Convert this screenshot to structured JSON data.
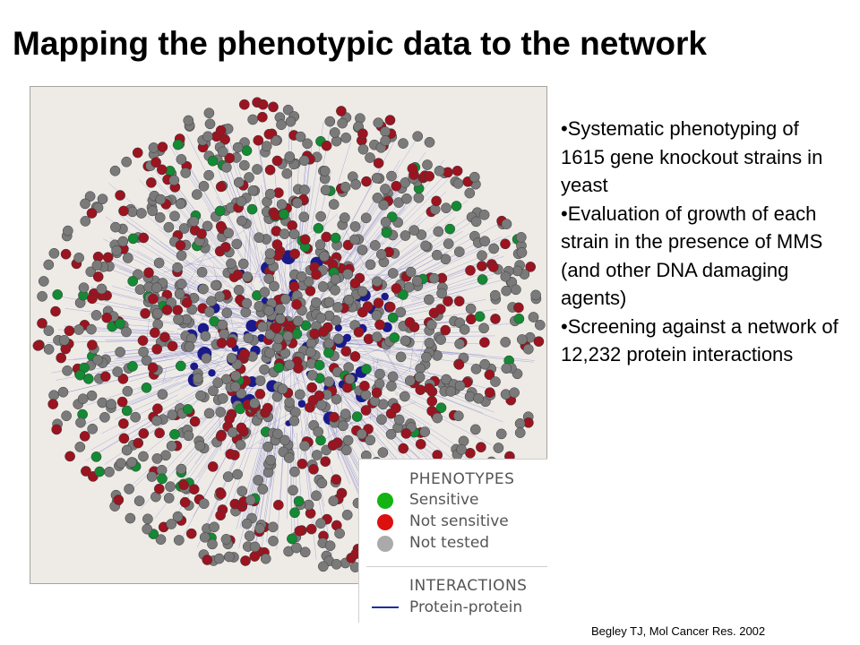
{
  "slide": {
    "title": "Mapping the phenotypic data to the network"
  },
  "bullets": [
    "Systematic phenotyping of 1615 gene knockout strains in yeast",
    "Evaluation of growth of each strain in the presence of MMS (and other DNA damaging agents)",
    "Screening against a network of 12,232 protein interactions"
  ],
  "legend": {
    "phenotypes_heading": "PHENOTYPES",
    "items": [
      {
        "label": "Sensitive",
        "color": "#12b312"
      },
      {
        "label": "Not sensitive",
        "color": "#dd1010"
      },
      {
        "label": "Not tested",
        "color": "#aaaaaa"
      }
    ],
    "interactions_heading": "INTERACTIONS",
    "interaction_label": "Protein-protein",
    "interaction_color": "#1f2fa0"
  },
  "network": {
    "node_colors": {
      "sensitive": "#138a33",
      "not_sensitive": "#9b1420",
      "not_tested": "#7a7a7a",
      "hub": "#1a1a8c",
      "edge": "#7a7ac8"
    }
  },
  "citation": "Begley TJ, Mol Cancer Res. 2002"
}
